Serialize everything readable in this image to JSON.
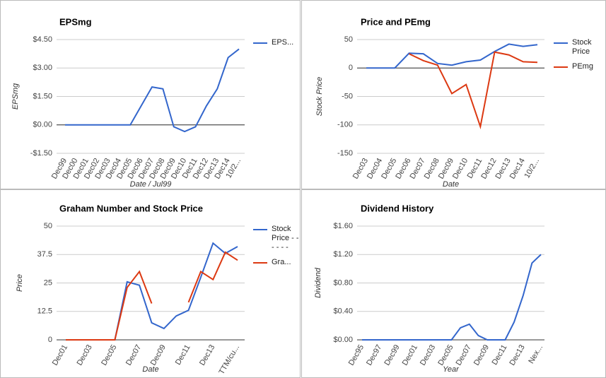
{
  "chart_data": [
    {
      "type": "line",
      "title": "EPSmg",
      "x_label": "Date / Jul99",
      "y_label": "EPSmg",
      "categories": [
        "Dec99",
        "Dec00",
        "Dec01",
        "Dec02",
        "Dec03",
        "Dec04",
        "Dec05",
        "Dec06",
        "Dec07",
        "Dec08",
        "Dec09",
        "Dec10",
        "Dec11",
        "Dec12",
        "Dec13",
        "Dec14",
        "10/2..."
      ],
      "series": [
        {
          "name": "EPS...",
          "color": "#3366cc",
          "values": [
            0,
            0,
            0,
            0,
            0,
            0,
            0,
            1.0,
            2.0,
            1.9,
            -0.1,
            -0.35,
            -0.1,
            1.0,
            1.9,
            3.55,
            4.0
          ]
        }
      ],
      "ylim": [
        -1.5,
        4.5
      ],
      "yticks": [
        {
          "value": 4.5,
          "label": "$4.50"
        },
        {
          "value": 3,
          "label": "$3.00"
        },
        {
          "value": 1.5,
          "label": "$1.50"
        },
        {
          "value": 0,
          "label": "$0.00"
        },
        {
          "value": -1.5,
          "label": "-$1.50"
        }
      ],
      "grid": true
    },
    {
      "type": "line",
      "title": "Price and PEmg",
      "x_label": "Date",
      "y_label": "Stock Price",
      "categories": [
        "Dec03",
        "Dec04",
        "Dec05",
        "Dec06",
        "Dec07",
        "Dec08",
        "Dec09",
        "Dec10",
        "Dec11",
        "Dec12",
        "Dec13",
        "Dec14",
        "10/2..."
      ],
      "series": [
        {
          "name": "Stock Price",
          "color": "#3366cc",
          "values": [
            0,
            0,
            0,
            26,
            25,
            8,
            5,
            11,
            14,
            29,
            42,
            38,
            41
          ]
        },
        {
          "name": "PEmg",
          "color": "#dc3912",
          "values": [
            null,
            null,
            null,
            25,
            13,
            5,
            -45,
            -29,
            -103,
            28,
            23,
            11,
            10
          ]
        }
      ],
      "ylim": [
        -150,
        50
      ],
      "yticks": [
        50,
        0,
        -50,
        -100,
        -150
      ],
      "grid": true
    },
    {
      "type": "line",
      "title": "Graham Number and Stock Price",
      "x_label": "Date",
      "y_label": "Price",
      "categories": [
        "Dec01",
        null,
        "Dec03",
        null,
        "Dec05",
        null,
        "Dec07",
        null,
        "Dec09",
        null,
        "Dec11",
        null,
        "Dec13",
        null,
        "TTM/cu..."
      ],
      "series": [
        {
          "name": "Stock Price - - - - - -",
          "color": "#3366cc",
          "values": [
            0,
            0,
            0,
            0,
            0,
            25.5,
            24,
            7.5,
            5,
            10.5,
            13,
            27.5,
            42.5,
            38,
            41
          ]
        },
        {
          "name": "Gra...",
          "color": "#dc3912",
          "values": [
            0,
            0,
            0,
            0,
            0,
            23,
            30,
            16,
            null,
            null,
            16.5,
            30,
            26.5,
            38.5,
            35
          ]
        }
      ],
      "ylim": [
        0,
        50
      ],
      "yticks": [
        0,
        12.5,
        25,
        37.5,
        50
      ],
      "grid": true
    },
    {
      "type": "line",
      "title": "Dividend History",
      "x_label": "Year",
      "y_label": "Dividend",
      "categories": [
        "Dec95",
        null,
        "Dec97",
        null,
        "Dec99",
        null,
        "Dec01",
        null,
        "Dec03",
        null,
        "Dec05",
        null,
        "Dec07",
        null,
        "Dec09",
        null,
        "Dec11",
        null,
        "Dec13",
        null,
        "Nex..."
      ],
      "values": [
        0,
        0,
        0,
        0,
        0,
        0,
        0,
        0,
        0,
        0,
        0,
        0.17,
        0.22,
        0.06,
        0,
        0,
        0,
        0.25,
        0.62,
        1.08,
        1.2
      ],
      "color": "#3366cc",
      "ylim": [
        0,
        1.6
      ],
      "yticks": [
        {
          "value": 0,
          "label": "$0.00"
        },
        {
          "value": 0.4,
          "label": "$0.40"
        },
        {
          "value": 0.8,
          "label": "$0.80"
        },
        {
          "value": 1.2,
          "label": "$1.20"
        },
        {
          "value": 1.6,
          "label": "$1.60"
        }
      ],
      "grid": true
    }
  ]
}
